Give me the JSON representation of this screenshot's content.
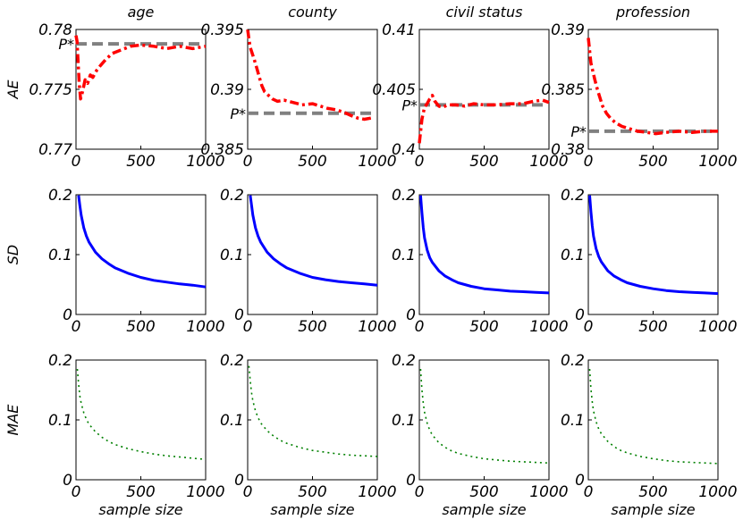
{
  "chart_data": [
    {
      "type": "line",
      "title": "age",
      "ylabel": "AE",
      "xlabel": "",
      "xlim": [
        0,
        1000
      ],
      "ylim": [
        0.77,
        0.78
      ],
      "xticks": [
        "0",
        "500",
        "1000"
      ],
      "yticks": [
        "0.77",
        "0.775",
        "0.78"
      ],
      "reference": {
        "label": "P*",
        "value": 0.7788
      },
      "series": [
        {
          "style": "dashdot-red",
          "x": [
            0,
            8,
            15,
            25,
            35,
            50,
            70,
            90,
            110,
            130,
            160,
            190,
            230,
            280,
            350,
            420,
            500,
            600,
            700,
            800,
            900,
            1000
          ],
          "y": [
            0.7795,
            0.779,
            0.7775,
            0.7755,
            0.7742,
            0.7748,
            0.7758,
            0.7755,
            0.7762,
            0.776,
            0.7766,
            0.777,
            0.7775,
            0.778,
            0.7783,
            0.7786,
            0.7787,
            0.7786,
            0.7784,
            0.7786,
            0.7784,
            0.7786
          ]
        }
      ]
    },
    {
      "type": "line",
      "title": "county",
      "ylabel": "",
      "xlabel": "",
      "xlim": [
        0,
        1000
      ],
      "ylim": [
        0.385,
        0.395
      ],
      "xticks": [
        "0",
        "500",
        "1000"
      ],
      "yticks": [
        "0.385",
        "0.39",
        "0.395"
      ],
      "reference": {
        "label": "P*",
        "value": 0.388
      },
      "series": [
        {
          "style": "dashdot-red",
          "x": [
            0,
            10,
            20,
            35,
            50,
            70,
            90,
            110,
            130,
            160,
            190,
            230,
            280,
            350,
            420,
            500,
            560,
            620,
            680,
            740,
            800,
            850,
            900,
            950
          ],
          "y": [
            0.395,
            0.3942,
            0.3935,
            0.393,
            0.3925,
            0.3918,
            0.391,
            0.3903,
            0.3898,
            0.3895,
            0.3892,
            0.389,
            0.3891,
            0.3889,
            0.3887,
            0.3888,
            0.3886,
            0.3884,
            0.3883,
            0.3881,
            0.3878,
            0.3876,
            0.3875,
            0.3876
          ]
        }
      ]
    },
    {
      "type": "line",
      "title": "civil status",
      "ylabel": "",
      "xlabel": "",
      "xlim": [
        0,
        1000
      ],
      "ylim": [
        0.4,
        0.41
      ],
      "xticks": [
        "0",
        "500",
        "1000"
      ],
      "yticks": [
        "0.4",
        "0.405",
        "0.41"
      ],
      "reference": {
        "label": "P*",
        "value": 0.4037
      },
      "series": [
        {
          "style": "dashdot-red",
          "x": [
            0,
            20,
            40,
            60,
            80,
            100,
            120,
            150,
            180,
            220,
            280,
            350,
            420,
            500,
            600,
            700,
            800,
            880,
            950,
            1000
          ],
          "y": [
            0.4005,
            0.4025,
            0.4035,
            0.4038,
            0.4042,
            0.4045,
            0.404,
            0.4036,
            0.4035,
            0.4037,
            0.4037,
            0.4036,
            0.4038,
            0.4037,
            0.4037,
            0.4038,
            0.4038,
            0.404,
            0.4041,
            0.4039
          ]
        }
      ]
    },
    {
      "type": "line",
      "title": "profession",
      "ylabel": "",
      "xlabel": "",
      "xlim": [
        0,
        1000
      ],
      "ylim": [
        0.38,
        0.39
      ],
      "xticks": [
        "0",
        "500",
        "1000"
      ],
      "yticks": [
        "0.38",
        "0.385",
        "0.39"
      ],
      "reference": {
        "label": "P*",
        "value": 0.3815
      },
      "series": [
        {
          "style": "dashdot-red",
          "x": [
            0,
            10,
            20,
            35,
            50,
            70,
            90,
            110,
            140,
            170,
            210,
            260,
            320,
            380,
            450,
            520,
            600,
            700,
            800,
            900,
            1000
          ],
          "y": [
            0.3893,
            0.3882,
            0.3872,
            0.3865,
            0.3858,
            0.385,
            0.3843,
            0.3836,
            0.383,
            0.3826,
            0.3822,
            0.3819,
            0.3817,
            0.3815,
            0.3814,
            0.3813,
            0.3814,
            0.3815,
            0.3814,
            0.3815,
            0.3815
          ]
        }
      ]
    },
    {
      "type": "line",
      "title": "",
      "ylabel": "SD",
      "xlabel": "",
      "xlim": [
        0,
        1000
      ],
      "ylim": [
        0,
        0.2
      ],
      "xticks": [
        "0",
        "500",
        "1000"
      ],
      "yticks": [
        "0",
        "0.1",
        "0.2"
      ],
      "series": [
        {
          "style": "solid-blue",
          "x": [
            20,
            30,
            40,
            60,
            80,
            100,
            150,
            200,
            250,
            300,
            400,
            500,
            600,
            700,
            800,
            900,
            1000
          ],
          "y": [
            0.199,
            0.182,
            0.166,
            0.145,
            0.131,
            0.121,
            0.104,
            0.093,
            0.085,
            0.078,
            0.069,
            0.062,
            0.057,
            0.054,
            0.051,
            0.049,
            0.046
          ]
        }
      ]
    },
    {
      "type": "line",
      "title": "",
      "ylabel": "",
      "xlabel": "",
      "xlim": [
        0,
        1000
      ],
      "ylim": [
        0,
        0.2
      ],
      "xticks": [
        "0",
        "500",
        "1000"
      ],
      "yticks": [
        "0",
        "0.1",
        "0.2"
      ],
      "series": [
        {
          "style": "solid-blue",
          "x": [
            20,
            30,
            40,
            60,
            80,
            100,
            150,
            200,
            250,
            300,
            400,
            500,
            600,
            700,
            800,
            900,
            1000
          ],
          "y": [
            0.199,
            0.182,
            0.166,
            0.145,
            0.131,
            0.121,
            0.104,
            0.093,
            0.085,
            0.078,
            0.069,
            0.062,
            0.058,
            0.055,
            0.053,
            0.051,
            0.049
          ]
        }
      ]
    },
    {
      "type": "line",
      "title": "",
      "ylabel": "",
      "xlabel": "",
      "xlim": [
        0,
        1000
      ],
      "ylim": [
        0,
        0.2
      ],
      "xticks": [
        "0",
        "500",
        "1000"
      ],
      "yticks": [
        "0",
        "0.1",
        "0.2"
      ],
      "series": [
        {
          "style": "solid-blue",
          "x": [
            10,
            20,
            30,
            40,
            60,
            80,
            100,
            150,
            200,
            250,
            300,
            400,
            500,
            600,
            700,
            800,
            900,
            1000
          ],
          "y": [
            0.199,
            0.17,
            0.145,
            0.128,
            0.108,
            0.095,
            0.087,
            0.073,
            0.064,
            0.058,
            0.053,
            0.047,
            0.043,
            0.041,
            0.039,
            0.038,
            0.037,
            0.036
          ]
        }
      ]
    },
    {
      "type": "line",
      "title": "",
      "ylabel": "",
      "xlabel": "",
      "xlim": [
        0,
        1000
      ],
      "ylim": [
        0,
        0.2
      ],
      "xticks": [
        "0",
        "500",
        "1000"
      ],
      "yticks": [
        "0",
        "0.1",
        "0.2"
      ],
      "series": [
        {
          "style": "solid-blue",
          "x": [
            10,
            20,
            30,
            40,
            60,
            80,
            100,
            150,
            200,
            250,
            300,
            400,
            500,
            600,
            700,
            800,
            900,
            1000
          ],
          "y": [
            0.199,
            0.172,
            0.148,
            0.131,
            0.11,
            0.097,
            0.088,
            0.073,
            0.064,
            0.058,
            0.053,
            0.047,
            0.043,
            0.04,
            0.038,
            0.037,
            0.036,
            0.035
          ]
        }
      ]
    },
    {
      "type": "line",
      "title": "",
      "ylabel": "MAE",
      "xlabel": "sample size",
      "xlim": [
        0,
        1000
      ],
      "ylim": [
        0,
        0.2
      ],
      "xticks": [
        "0",
        "500",
        "1000"
      ],
      "yticks": [
        "0",
        "0.1",
        "0.2"
      ],
      "series": [
        {
          "style": "dotted-green",
          "x": [
            10,
            20,
            30,
            40,
            60,
            80,
            100,
            150,
            200,
            250,
            300,
            400,
            500,
            600,
            700,
            800,
            900,
            1000
          ],
          "y": [
            0.185,
            0.16,
            0.14,
            0.128,
            0.112,
            0.101,
            0.093,
            0.08,
            0.071,
            0.064,
            0.059,
            0.052,
            0.047,
            0.043,
            0.04,
            0.038,
            0.036,
            0.034
          ]
        }
      ]
    },
    {
      "type": "line",
      "title": "",
      "ylabel": "",
      "xlabel": "sample size",
      "xlim": [
        0,
        1000
      ],
      "ylim": [
        0,
        0.2
      ],
      "xticks": [
        "0",
        "500",
        "1000"
      ],
      "yticks": [
        "0",
        "0.1",
        "0.2"
      ],
      "series": [
        {
          "style": "dotted-green",
          "x": [
            10,
            20,
            30,
            40,
            60,
            80,
            100,
            150,
            200,
            250,
            300,
            400,
            500,
            600,
            700,
            800,
            900,
            1000
          ],
          "y": [
            0.19,
            0.165,
            0.145,
            0.132,
            0.115,
            0.104,
            0.095,
            0.082,
            0.073,
            0.066,
            0.061,
            0.054,
            0.049,
            0.046,
            0.043,
            0.041,
            0.04,
            0.039
          ]
        }
      ]
    },
    {
      "type": "line",
      "title": "",
      "ylabel": "",
      "xlabel": "sample size",
      "xlim": [
        0,
        1000
      ],
      "ylim": [
        0,
        0.2
      ],
      "xticks": [
        "0",
        "500",
        "1000"
      ],
      "yticks": [
        "0",
        "0.1",
        "0.2"
      ],
      "series": [
        {
          "style": "dotted-green",
          "x": [
            10,
            20,
            30,
            40,
            60,
            80,
            100,
            150,
            200,
            250,
            300,
            400,
            500,
            600,
            700,
            800,
            900,
            1000
          ],
          "y": [
            0.185,
            0.15,
            0.128,
            0.113,
            0.095,
            0.083,
            0.075,
            0.062,
            0.054,
            0.048,
            0.044,
            0.039,
            0.035,
            0.033,
            0.031,
            0.03,
            0.029,
            0.028
          ]
        }
      ]
    },
    {
      "type": "line",
      "title": "",
      "ylabel": "",
      "xlabel": "sample size",
      "xlim": [
        0,
        1000
      ],
      "ylim": [
        0,
        0.2
      ],
      "xticks": [
        "0",
        "500",
        "1000"
      ],
      "yticks": [
        "0",
        "0.1",
        "0.2"
      ],
      "series": [
        {
          "style": "dotted-green",
          "x": [
            10,
            20,
            30,
            40,
            60,
            80,
            100,
            150,
            200,
            250,
            300,
            400,
            500,
            600,
            700,
            800,
            900,
            1000
          ],
          "y": [
            0.185,
            0.152,
            0.13,
            0.115,
            0.097,
            0.085,
            0.077,
            0.064,
            0.055,
            0.049,
            0.045,
            0.039,
            0.035,
            0.032,
            0.03,
            0.029,
            0.028,
            0.027
          ]
        }
      ]
    }
  ]
}
